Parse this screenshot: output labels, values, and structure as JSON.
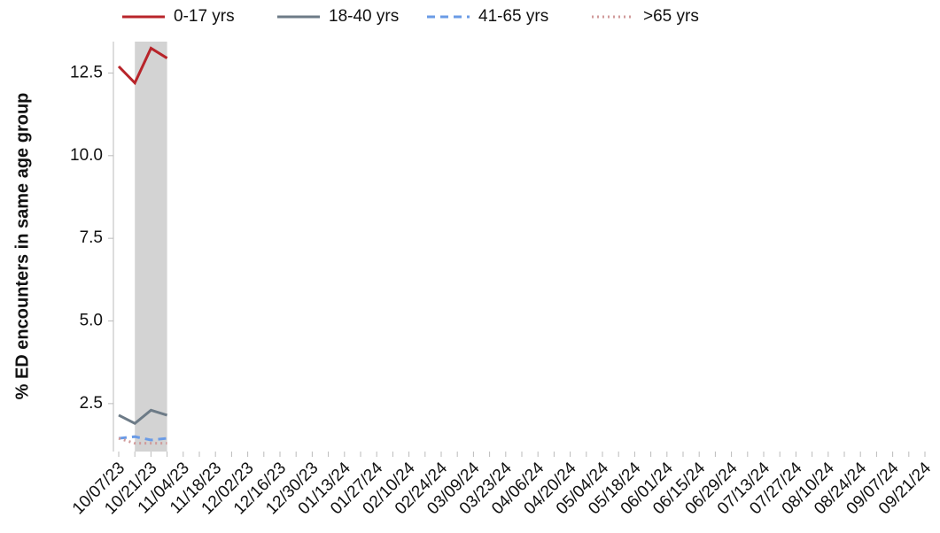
{
  "chart_data": {
    "type": "line",
    "y_label": "% ED encounters in same age group",
    "categories": [
      "10/07/23",
      null,
      "10/21/23",
      null,
      "11/04/23",
      null,
      "11/18/23",
      null,
      "12/02/23",
      null,
      "12/16/23",
      null,
      "12/30/23",
      null,
      "01/13/24",
      null,
      "01/27/24",
      null,
      "02/10/24",
      null,
      "02/24/24",
      null,
      "03/09/24",
      null,
      "03/23/24",
      null,
      "04/06/24",
      null,
      "04/20/24",
      null,
      "05/04/24",
      null,
      "05/18/24",
      null,
      "06/01/24",
      null,
      "06/15/24",
      null,
      "06/29/24",
      null,
      "07/13/24",
      null,
      "07/27/24",
      null,
      "08/10/24",
      null,
      "08/24/24",
      null,
      "09/07/24",
      null,
      "09/21/24"
    ],
    "series": [
      {
        "name": "0-17 yrs",
        "color": "#b8242a",
        "dash": "solid",
        "values": [
          12.7,
          12.2,
          13.25,
          12.95,
          null,
          null,
          null,
          null,
          null,
          null,
          null,
          null,
          null,
          null,
          null,
          null,
          null,
          null,
          null,
          null,
          null,
          null,
          null,
          null,
          null,
          null,
          null,
          null,
          null,
          null,
          null,
          null,
          null,
          null,
          null,
          null,
          null,
          null,
          null,
          null,
          null,
          null,
          null,
          null,
          null,
          null,
          null,
          null,
          null,
          null,
          null
        ]
      },
      {
        "name": "18-40 yrs",
        "color": "#6d7b87",
        "dash": "solid",
        "values": [
          2.15,
          1.9,
          2.3,
          2.15,
          null,
          null,
          null,
          null,
          null,
          null,
          null,
          null,
          null,
          null,
          null,
          null,
          null,
          null,
          null,
          null,
          null,
          null,
          null,
          null,
          null,
          null,
          null,
          null,
          null,
          null,
          null,
          null,
          null,
          null,
          null,
          null,
          null,
          null,
          null,
          null,
          null,
          null,
          null,
          null,
          null,
          null,
          null,
          null,
          null,
          null,
          null
        ]
      },
      {
        "name": "41-65 yrs",
        "color": "#6a9be6",
        "dash": "dashed",
        "values": [
          1.45,
          1.5,
          1.4,
          1.45,
          null,
          null,
          null,
          null,
          null,
          null,
          null,
          null,
          null,
          null,
          null,
          null,
          null,
          null,
          null,
          null,
          null,
          null,
          null,
          null,
          null,
          null,
          null,
          null,
          null,
          null,
          null,
          null,
          null,
          null,
          null,
          null,
          null,
          null,
          null,
          null,
          null,
          null,
          null,
          null,
          null,
          null,
          null,
          null,
          null,
          null,
          null
        ]
      },
      {
        "name": ">65 yrs",
        "color": "#d09a9a",
        "dash": "dotted",
        "values": [
          1.45,
          1.3,
          1.3,
          1.3,
          null,
          null,
          null,
          null,
          null,
          null,
          null,
          null,
          null,
          null,
          null,
          null,
          null,
          null,
          null,
          null,
          null,
          null,
          null,
          null,
          null,
          null,
          null,
          null,
          null,
          null,
          null,
          null,
          null,
          null,
          null,
          null,
          null,
          null,
          null,
          null,
          null,
          null,
          null,
          null,
          null,
          null,
          null,
          null,
          null,
          null,
          null
        ]
      }
    ],
    "shaded_range": [
      1,
      3
    ],
    "ylim": [
      1.05,
      13.45
    ],
    "yticks": [
      2.5,
      {
        "value": 5,
        "label": "5.0"
      },
      7.5,
      {
        "value": 10,
        "label": "10.0"
      },
      12.5
    ],
    "grid": false,
    "legend": "top"
  }
}
